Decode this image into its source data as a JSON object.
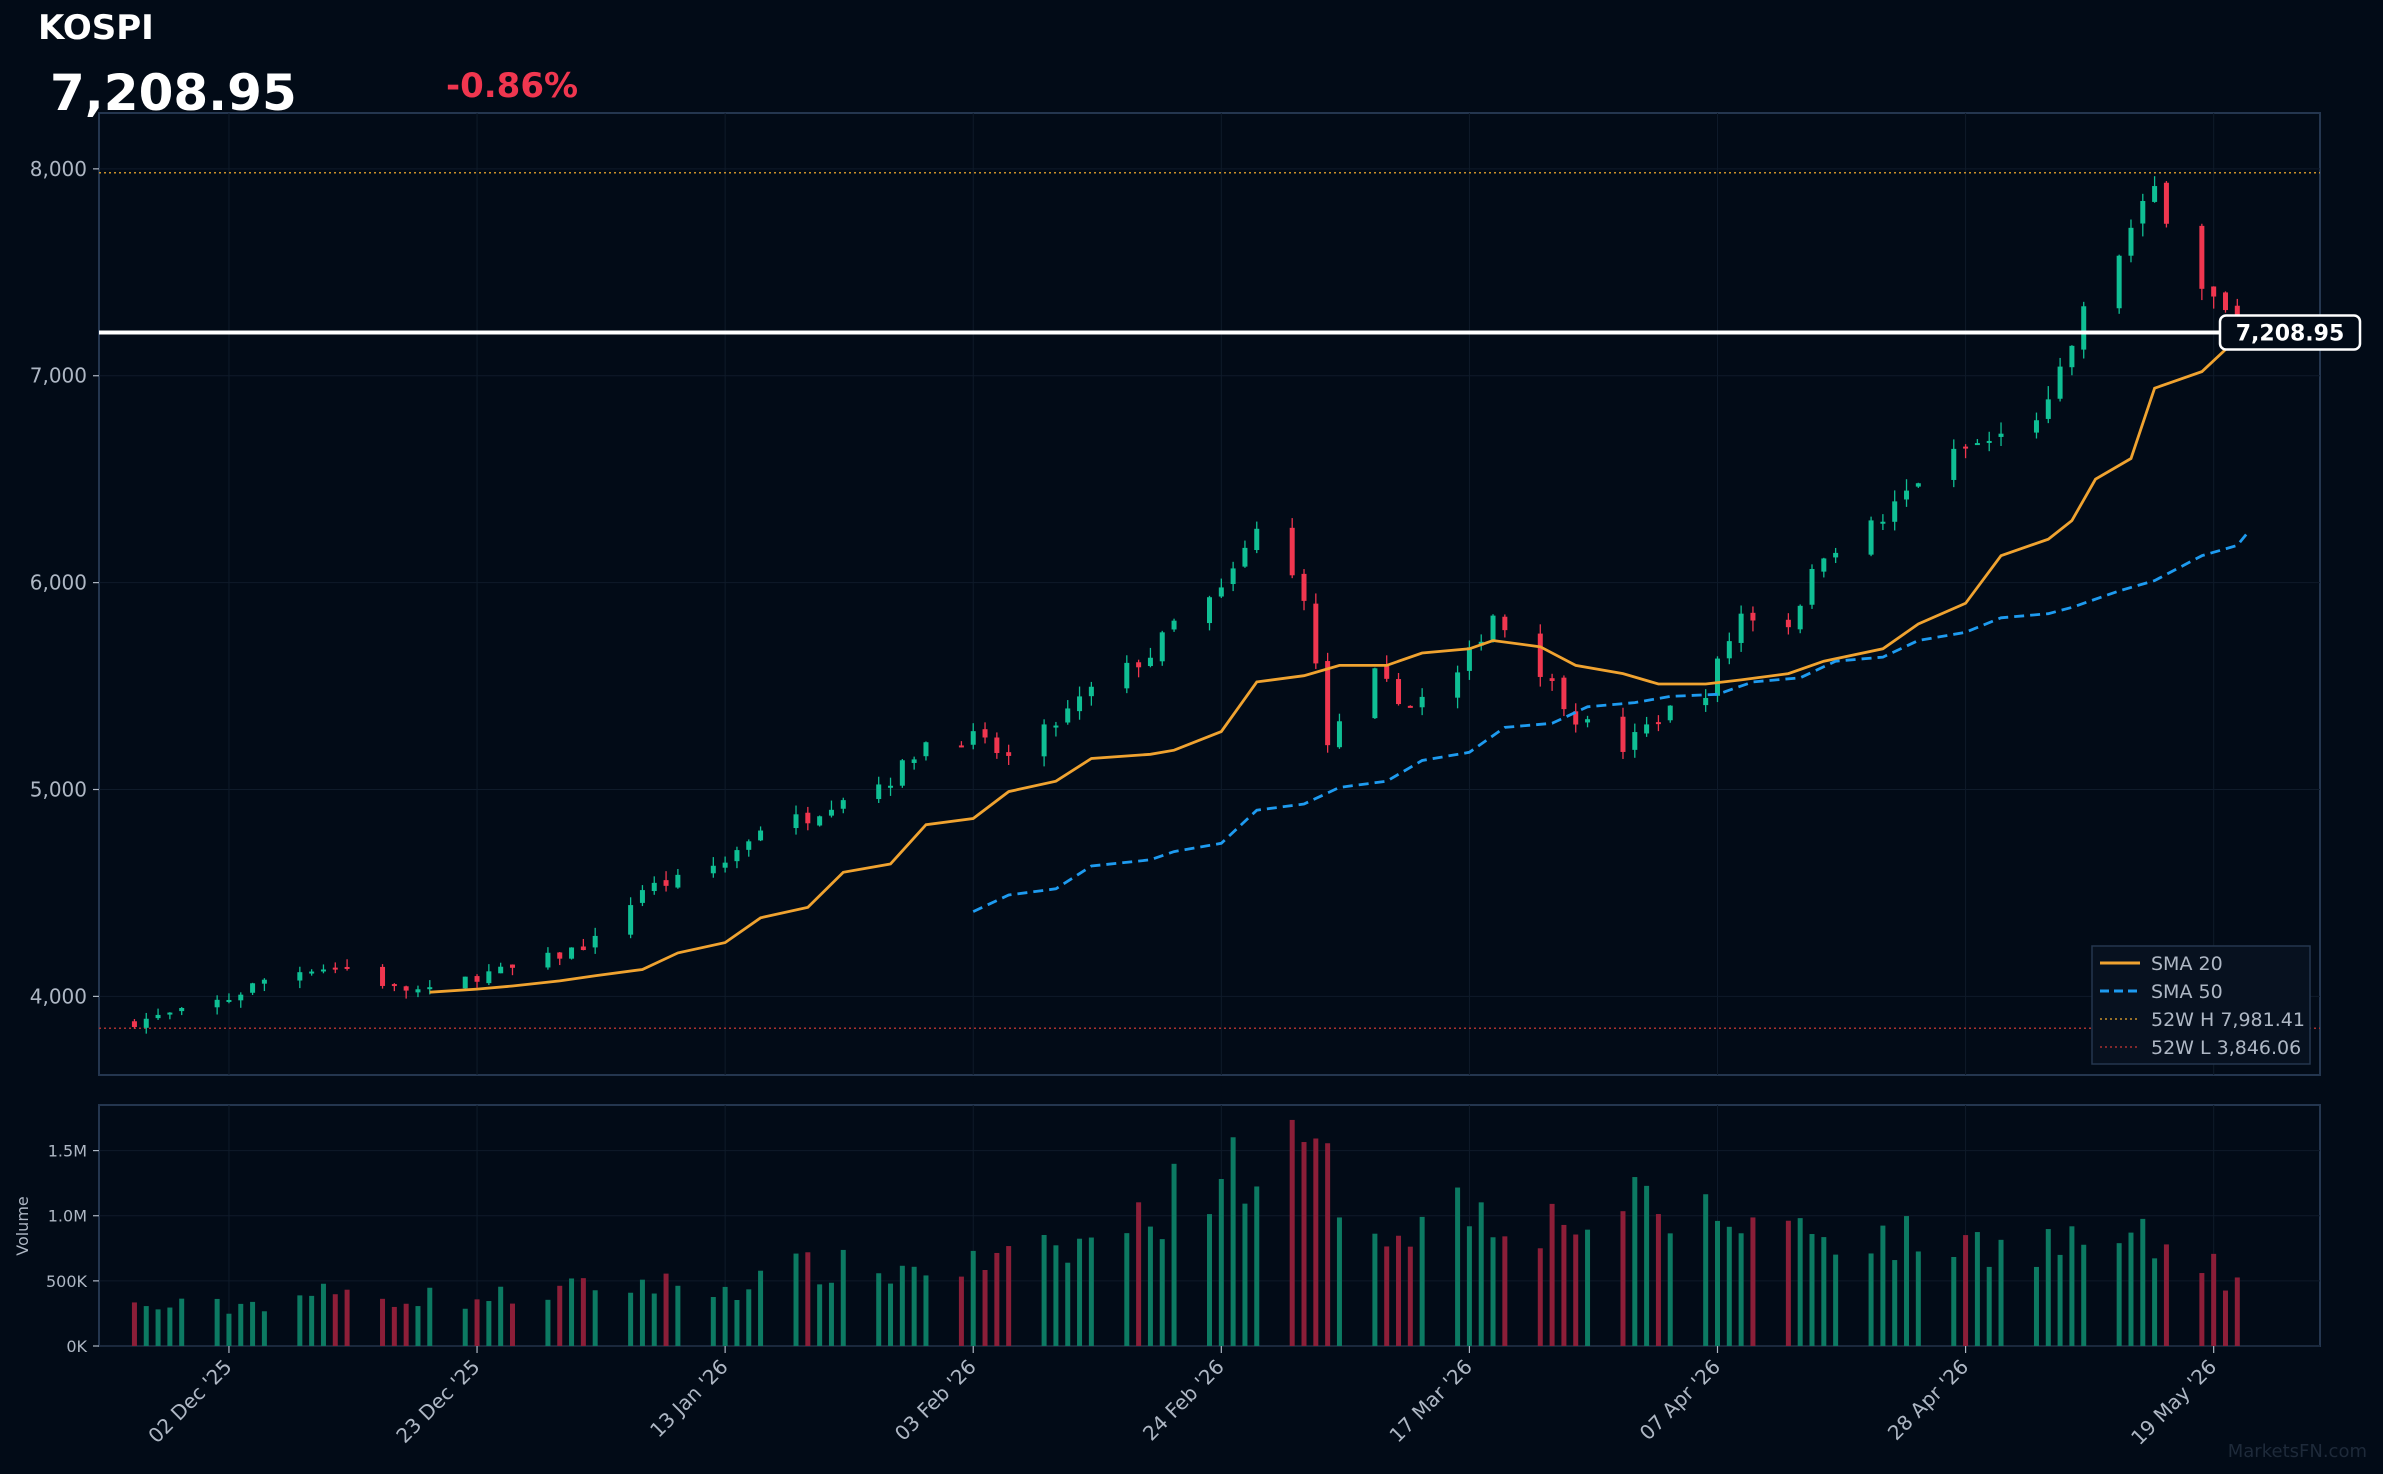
{
  "header": {
    "ticker": "KOSPI",
    "price": "7,208.95",
    "change": "-0.86%"
  },
  "watermark": "MarketsFN.com",
  "colors": {
    "background": "#020b17",
    "up": "#0fbf94",
    "down": "#f0364f",
    "volume_up": "#0c7a62",
    "volume_down": "#8c1e38",
    "sma20": "#f0a330",
    "sma50": "#1e9bf0",
    "hi_line": "#c8902a",
    "lo_line": "#a83030",
    "price_line": "#ffffff"
  },
  "chart_data": [
    {
      "type": "candlestick",
      "title": "KOSPI",
      "ylim": [
        3620,
        8270
      ],
      "yticks": [
        4000,
        5000,
        6000,
        7000,
        8000
      ],
      "ytick_labels": [
        "4,000",
        "5,000",
        "6,000",
        "7,000",
        "8,000"
      ],
      "x_range": [
        "2025-11-21",
        "2026-05-28"
      ],
      "xtick_dates": [
        "2025-12-02",
        "2025-12-23",
        "2026-01-13",
        "2026-02-03",
        "2026-02-24",
        "2026-03-17",
        "2026-04-07",
        "2026-04-28",
        "2026-05-19"
      ],
      "xtick_labels": [
        "02 Dec '25",
        "23 Dec '25",
        "13 Jan '26",
        "03 Feb '26",
        "24 Feb '26",
        "17 Mar '26",
        "07 Apr '26",
        "28 Apr '26",
        "19 May '26"
      ],
      "last_price": 7208.95,
      "last_price_label": "7,208.95",
      "high_52w": 7981.41,
      "low_52w": 3846.06,
      "legend": [
        "SMA 20",
        "SMA 50",
        "52W H 7,981.41",
        "52W L 3,846.06"
      ],
      "legend_position": "bottom-right",
      "grid": true,
      "series": [
        {
          "name": "Candles",
          "anchors": [
            [
              "2025-11-24",
              3880
            ],
            [
              "2025-11-28",
              3920
            ],
            [
              "2025-12-02",
              3990
            ],
            [
              "2025-12-05",
              4080
            ],
            [
              "2025-12-09",
              4140
            ],
            [
              "2025-12-12",
              4140
            ],
            [
              "2025-12-16",
              4040
            ],
            [
              "2025-12-19",
              4020
            ],
            [
              "2025-12-23",
              4100
            ],
            [
              "2025-12-26",
              4130
            ],
            [
              "2025-12-30",
              4200
            ],
            [
              "2026-01-02",
              4270
            ],
            [
              "2026-01-06",
              4520
            ],
            [
              "2026-01-09",
              4560
            ],
            [
              "2026-01-13",
              4650
            ],
            [
              "2026-01-16",
              4820
            ],
            [
              "2026-01-20",
              4870
            ],
            [
              "2026-01-23",
              4970
            ],
            [
              "2026-01-27",
              5050
            ],
            [
              "2026-01-30",
              5230
            ],
            [
              "2026-02-03",
              5250
            ],
            [
              "2026-02-06",
              5150
            ],
            [
              "2026-02-10",
              5320
            ],
            [
              "2026-02-13",
              5480
            ],
            [
              "2026-02-18",
              5650
            ],
            [
              "2026-02-20",
              5800
            ],
            [
              "2026-02-24",
              5950
            ],
            [
              "2026-02-27",
              6250
            ],
            [
              "2026-03-03",
              5950
            ],
            [
              "2026-03-05",
              5220
            ],
            [
              "2026-03-09",
              5550
            ],
            [
              "2026-03-12",
              5400
            ],
            [
              "2026-03-16",
              5550
            ],
            [
              "2026-03-19",
              5850
            ],
            [
              "2026-03-23",
              5580
            ],
            [
              "2026-03-26",
              5350
            ],
            [
              "2026-03-30",
              5200
            ],
            [
              "2026-04-02",
              5350
            ],
            [
              "2026-04-06",
              5480
            ],
            [
              "2026-04-09",
              5850
            ],
            [
              "2026-04-13",
              5800
            ],
            [
              "2026-04-16",
              6150
            ],
            [
              "2026-04-21",
              6300
            ],
            [
              "2026-04-24",
              6500
            ],
            [
              "2026-04-28",
              6650
            ],
            [
              "2026-05-01",
              6700
            ],
            [
              "2026-05-05",
              6850
            ],
            [
              "2026-05-08",
              7300
            ],
            [
              "2026-05-12",
              7700
            ],
            [
              "2026-05-14",
              7900
            ],
            [
              "2026-05-18",
              7450
            ],
            [
              "2026-05-21",
              7208.95
            ]
          ]
        },
        {
          "name": "SMA 20",
          "points": [
            [
              "2025-12-19",
              4020
            ],
            [
              "2025-12-23",
              4035
            ],
            [
              "2025-12-26",
              4050
            ],
            [
              "2025-12-30",
              4075
            ],
            [
              "2026-01-02",
              4100
            ],
            [
              "2026-01-06",
              4130
            ],
            [
              "2026-01-09",
              4210
            ],
            [
              "2026-01-13",
              4260
            ],
            [
              "2026-01-16",
              4380
            ],
            [
              "2026-01-20",
              4430
            ],
            [
              "2026-01-23",
              4600
            ],
            [
              "2026-01-27",
              4640
            ],
            [
              "2026-01-30",
              4830
            ],
            [
              "2026-02-03",
              4860
            ],
            [
              "2026-02-06",
              4990
            ],
            [
              "2026-02-10",
              5040
            ],
            [
              "2026-02-13",
              5150
            ],
            [
              "2026-02-18",
              5170
            ],
            [
              "2026-02-20",
              5190
            ],
            [
              "2026-02-24",
              5280
            ],
            [
              "2026-02-27",
              5520
            ],
            [
              "2026-03-03",
              5550
            ],
            [
              "2026-03-06",
              5600
            ],
            [
              "2026-03-10",
              5600
            ],
            [
              "2026-03-13",
              5660
            ],
            [
              "2026-03-17",
              5680
            ],
            [
              "2026-03-19",
              5720
            ],
            [
              "2026-03-23",
              5690
            ],
            [
              "2026-03-26",
              5600
            ],
            [
              "2026-03-30",
              5560
            ],
            [
              "2026-04-02",
              5510
            ],
            [
              "2026-04-06",
              5510
            ],
            [
              "2026-04-09",
              5530
            ],
            [
              "2026-04-13",
              5560
            ],
            [
              "2026-04-16",
              5620
            ],
            [
              "2026-04-21",
              5680
            ],
            [
              "2026-04-24",
              5800
            ],
            [
              "2026-04-28",
              5900
            ],
            [
              "2026-05-01",
              6130
            ],
            [
              "2026-05-05",
              6210
            ],
            [
              "2026-05-07",
              6300
            ],
            [
              "2026-05-09",
              6500
            ],
            [
              "2026-05-12",
              6600
            ],
            [
              "2026-05-14",
              6940
            ],
            [
              "2026-05-18",
              7020
            ],
            [
              "2026-05-21",
              7180
            ]
          ]
        },
        {
          "name": "SMA 50",
          "points": [
            [
              "2026-02-03",
              4410
            ],
            [
              "2026-02-06",
              4490
            ],
            [
              "2026-02-10",
              4520
            ],
            [
              "2026-02-13",
              4630
            ],
            [
              "2026-02-18",
              4660
            ],
            [
              "2026-02-20",
              4700
            ],
            [
              "2026-02-24",
              4740
            ],
            [
              "2026-02-27",
              4900
            ],
            [
              "2026-03-03",
              4930
            ],
            [
              "2026-03-06",
              5010
            ],
            [
              "2026-03-10",
              5040
            ],
            [
              "2026-03-13",
              5140
            ],
            [
              "2026-03-17",
              5180
            ],
            [
              "2026-03-20",
              5300
            ],
            [
              "2026-03-24",
              5320
            ],
            [
              "2026-03-27",
              5400
            ],
            [
              "2026-03-31",
              5420
            ],
            [
              "2026-04-03",
              5450
            ],
            [
              "2026-04-07",
              5460
            ],
            [
              "2026-04-10",
              5520
            ],
            [
              "2026-04-14",
              5540
            ],
            [
              "2026-04-17",
              5620
            ],
            [
              "2026-04-21",
              5640
            ],
            [
              "2026-04-24",
              5720
            ],
            [
              "2026-04-28",
              5760
            ],
            [
              "2026-05-01",
              5830
            ],
            [
              "2026-05-05",
              5850
            ],
            [
              "2026-05-07",
              5880
            ],
            [
              "2026-05-11",
              5960
            ],
            [
              "2026-05-14",
              6010
            ],
            [
              "2026-05-18",
              6130
            ],
            [
              "2026-05-21",
              6180
            ],
            [
              "2026-05-22",
              6250
            ]
          ]
        }
      ]
    },
    {
      "type": "bar",
      "ylabel": "Volume",
      "ylim": [
        0,
        1850000
      ],
      "yticks": [
        0,
        500000,
        1000000,
        1500000
      ],
      "ytick_labels": [
        "0K",
        "500K",
        "1.0M",
        "1.5M"
      ],
      "grid": true,
      "anchors": [
        [
          "2025-11-24",
          300000
        ],
        [
          "2025-12-02",
          300000
        ],
        [
          "2025-12-09",
          400000
        ],
        [
          "2025-12-16",
          380000
        ],
        [
          "2025-12-23",
          360000
        ],
        [
          "2025-12-30",
          420000
        ],
        [
          "2026-01-06",
          480000
        ],
        [
          "2026-01-13",
          440000
        ],
        [
          "2026-01-20",
          600000
        ],
        [
          "2026-01-27",
          580000
        ],
        [
          "2026-02-03",
          620000
        ],
        [
          "2026-02-10",
          700000
        ],
        [
          "2026-02-17",
          950000
        ],
        [
          "2026-02-24",
          1400000
        ],
        [
          "2026-03-03",
          1450000
        ],
        [
          "2026-03-10",
          900000
        ],
        [
          "2026-03-17",
          1100000
        ],
        [
          "2026-03-24",
          950000
        ],
        [
          "2026-03-31",
          1050000
        ],
        [
          "2026-04-07",
          980000
        ],
        [
          "2026-04-14",
          920000
        ],
        [
          "2026-04-21",
          820000
        ],
        [
          "2026-04-28",
          780000
        ],
        [
          "2026-05-05",
          800000
        ],
        [
          "2026-05-12",
          820000
        ],
        [
          "2026-05-21",
          520000
        ]
      ]
    }
  ]
}
